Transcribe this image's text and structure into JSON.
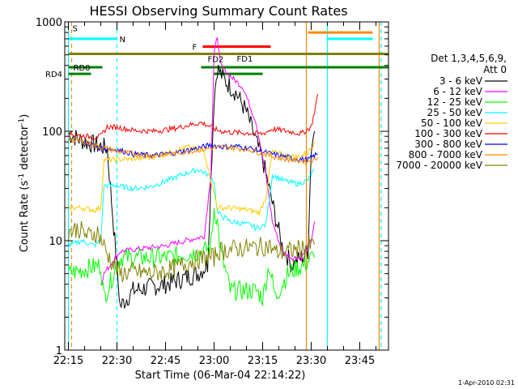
{
  "chart_data": {
    "type": "line",
    "title": "HESSI Observing Summary Count Rates",
    "xlabel": "Start Time (06-Mar-04 22:14:22)",
    "ylabel_main": "Count Rate (s",
    "ylabel_sup": "-1",
    "ylabel_mid": " detector",
    "ylabel_end": ")",
    "timestamp": "1-Apr-2010 02:31",
    "y_scale": "log",
    "xlim_minutes": [
      0,
      100
    ],
    "ylim": [
      1,
      1000
    ],
    "x_ticks": [
      {
        "minute": 0,
        "label": "22:15"
      },
      {
        "minute": 15,
        "label": "22:30"
      },
      {
        "minute": 30,
        "label": "22:45"
      },
      {
        "minute": 45,
        "label": "23:00"
      },
      {
        "minute": 60,
        "label": "23:15"
      },
      {
        "minute": 75,
        "label": "23:30"
      },
      {
        "minute": 90,
        "label": "23:45"
      }
    ],
    "y_ticks": [
      {
        "value": 1,
        "label": "1"
      },
      {
        "value": 10,
        "label": "10"
      },
      {
        "value": 100,
        "label": "100"
      },
      {
        "value": 1000,
        "label": "1000"
      }
    ],
    "legend": {
      "header": [
        "Det 1,3,4,5,6,9,",
        "Att 0"
      ],
      "placement": "right"
    },
    "series": [
      {
        "name": "3 - 6 keV",
        "color": "#000000",
        "points": [
          [
            0,
            95
          ],
          [
            5,
            80
          ],
          [
            12,
            70
          ],
          [
            16,
            2.5
          ],
          [
            20,
            3.5
          ],
          [
            30,
            4
          ],
          [
            40,
            5
          ],
          [
            43,
            6
          ],
          [
            45,
            200
          ],
          [
            46,
            380
          ],
          [
            48,
            300
          ],
          [
            52,
            220
          ],
          [
            55,
            150
          ],
          [
            58,
            80
          ],
          [
            60,
            55
          ],
          [
            63,
            22
          ],
          [
            66,
            9
          ],
          [
            69,
            6
          ],
          [
            72,
            7
          ],
          [
            74,
            8
          ],
          [
            75,
            70
          ],
          [
            76,
            100
          ]
        ]
      },
      {
        "name": "6 - 12 keV",
        "color": "#ff00ff",
        "points": [
          [
            10,
            4
          ],
          [
            11,
            5
          ],
          [
            16,
            8
          ],
          [
            30,
            9
          ],
          [
            42,
            11
          ],
          [
            44,
            40
          ],
          [
            45,
            500
          ],
          [
            46,
            750
          ],
          [
            47,
            400
          ],
          [
            50,
            320
          ],
          [
            54,
            250
          ],
          [
            58,
            120
          ],
          [
            61,
            40
          ],
          [
            63,
            15
          ],
          [
            66,
            8
          ],
          [
            69,
            7
          ],
          [
            72,
            7
          ],
          [
            75,
            10
          ],
          [
            76,
            15
          ]
        ]
      },
      {
        "name": "12 - 25 keV",
        "color": "#00ff00",
        "points": [
          [
            0,
            5
          ],
          [
            10,
            6
          ],
          [
            11,
            3
          ],
          [
            16,
            7
          ],
          [
            30,
            7
          ],
          [
            42,
            8
          ],
          [
            44,
            9
          ],
          [
            45,
            20
          ],
          [
            46,
            15
          ],
          [
            47,
            8
          ],
          [
            50,
            3.5
          ],
          [
            58,
            3.5
          ],
          [
            60,
            3
          ],
          [
            62,
            6
          ],
          [
            64,
            3
          ],
          [
            66,
            4
          ],
          [
            68,
            5
          ],
          [
            70,
            5.5
          ],
          [
            73,
            6
          ],
          [
            75,
            7
          ],
          [
            76,
            7
          ]
        ]
      },
      {
        "name": "25 - 50 keV",
        "color": "#00ffff",
        "points": [
          [
            0,
            9
          ],
          [
            4,
            10
          ],
          [
            8,
            9
          ],
          [
            10,
            10
          ],
          [
            11,
            32
          ],
          [
            14,
            32
          ],
          [
            20,
            30
          ],
          [
            25,
            31
          ],
          [
            30,
            35
          ],
          [
            35,
            40
          ],
          [
            40,
            45
          ],
          [
            43,
            40
          ],
          [
            45,
            35
          ],
          [
            46,
            18
          ],
          [
            50,
            15
          ],
          [
            56,
            14
          ],
          [
            58,
            13
          ],
          [
            61,
            14
          ],
          [
            63,
            40
          ],
          [
            67,
            35
          ],
          [
            71,
            33
          ],
          [
            74,
            36
          ],
          [
            76,
            45
          ]
        ]
      },
      {
        "name": "50 - 100 keV",
        "color": "#ffcc00",
        "points": [
          [
            0,
            20
          ],
          [
            4,
            20
          ],
          [
            8,
            19
          ],
          [
            10,
            20
          ],
          [
            11,
            55
          ],
          [
            14,
            55
          ],
          [
            20,
            56
          ],
          [
            26,
            58
          ],
          [
            32,
            65
          ],
          [
            37,
            72
          ],
          [
            42,
            65
          ],
          [
            46,
            20
          ],
          [
            50,
            20
          ],
          [
            56,
            19
          ],
          [
            59,
            18
          ],
          [
            61,
            25
          ],
          [
            63,
            65
          ],
          [
            67,
            60
          ],
          [
            71,
            58
          ],
          [
            74,
            64
          ],
          [
            76,
            80
          ]
        ]
      },
      {
        "name": "100 - 300 keV",
        "color": "#ff0000",
        "points": [
          [
            0,
            95
          ],
          [
            3,
            92
          ],
          [
            8,
            88
          ],
          [
            10,
            90
          ],
          [
            12,
            110
          ],
          [
            16,
            108
          ],
          [
            20,
            102
          ],
          [
            26,
            100
          ],
          [
            32,
            105
          ],
          [
            36,
            112
          ],
          [
            41,
            120
          ],
          [
            44,
            110
          ],
          [
            46,
            102
          ],
          [
            50,
            98
          ],
          [
            56,
            96
          ],
          [
            60,
            95
          ],
          [
            63,
            105
          ],
          [
            68,
            100
          ],
          [
            72,
            95
          ],
          [
            75,
            110
          ],
          [
            76,
            150
          ],
          [
            77,
            220
          ]
        ]
      },
      {
        "name": "300 - 800 keV",
        "color": "#0000ff",
        "points": [
          [
            5,
            80
          ],
          [
            10,
            70
          ],
          [
            15,
            68
          ],
          [
            20,
            62
          ],
          [
            26,
            60
          ],
          [
            32,
            63
          ],
          [
            38,
            68
          ],
          [
            44,
            75
          ],
          [
            48,
            72
          ],
          [
            52,
            73
          ],
          [
            56,
            70
          ],
          [
            60,
            65
          ],
          [
            65,
            60
          ],
          [
            70,
            56
          ],
          [
            74,
            55
          ],
          [
            76,
            60
          ],
          [
            77,
            62
          ]
        ]
      },
      {
        "name": "800 - 7000 keV",
        "color": "#ff8800",
        "points": [
          [
            0,
            85
          ],
          [
            5,
            80
          ],
          [
            10,
            72
          ],
          [
            15,
            66
          ],
          [
            20,
            62
          ],
          [
            26,
            60
          ],
          [
            32,
            62
          ],
          [
            38,
            66
          ],
          [
            44,
            70
          ],
          [
            48,
            72
          ],
          [
            52,
            70
          ],
          [
            56,
            68
          ],
          [
            60,
            63
          ],
          [
            65,
            57
          ],
          [
            70,
            54
          ],
          [
            74,
            53
          ],
          [
            76,
            55
          ],
          [
            77,
            58
          ]
        ]
      },
      {
        "name": "7000 - 20000 keV",
        "color": "#808000",
        "points": [
          [
            0,
            12
          ],
          [
            3,
            13
          ],
          [
            6,
            11
          ],
          [
            9,
            12
          ],
          [
            11,
            9
          ],
          [
            12,
            7.5
          ],
          [
            14,
            6
          ],
          [
            16,
            5
          ],
          [
            20,
            5.2
          ],
          [
            26,
            5
          ],
          [
            32,
            5.5
          ],
          [
            38,
            6.5
          ],
          [
            43,
            7
          ],
          [
            45,
            7
          ],
          [
            46,
            8
          ],
          [
            52,
            8.5
          ],
          [
            58,
            8.7
          ],
          [
            62,
            9
          ],
          [
            64,
            7.8
          ],
          [
            68,
            8
          ],
          [
            72,
            8.5
          ],
          [
            74,
            9
          ],
          [
            76,
            9.2
          ]
        ]
      }
    ],
    "flags": [
      {
        "name": "S",
        "color": "#ff8800",
        "value_y": 880,
        "start": 0,
        "end": 0,
        "label_color": "#ff8800"
      },
      {
        "name": "N",
        "color": "#00ffff",
        "value_y": 700,
        "start": 0,
        "end": 15,
        "label_color": "#00ffff"
      },
      {
        "name": "N-late",
        "label": "",
        "color": "#00ffff",
        "value_y": 700,
        "start": 79.8,
        "end": 94
      },
      {
        "name": "S-late",
        "label": "",
        "color": "#ff8800",
        "value_y": 800,
        "start": 74,
        "end": 94
      },
      {
        "name": "F",
        "color": "#ff0000",
        "value_y": 595,
        "start": 41.5,
        "end": 62.5,
        "label_color": "#ff0000"
      },
      {
        "name": "FD1",
        "color": "#ff0000",
        "value_y": 495,
        "label_color": "#808000"
      },
      {
        "name": "Att-olive",
        "label": "",
        "color": "#808000",
        "value_y": 510,
        "start": 0,
        "end": 100
      },
      {
        "name": "RD0",
        "color": "#008000",
        "value_y": 385,
        "start": 0,
        "end": 100,
        "gap_start": 10.5,
        "gap_end": 41,
        "label_color": "#008000"
      },
      {
        "name": "FD2",
        "color": "#808000",
        "value_y": 400,
        "label_color": "#808000"
      },
      {
        "name": "RD4",
        "color": "#008000",
        "value_y": 335,
        "start": 0,
        "end": 7,
        "seg2_start": 45,
        "seg2_end": 60,
        "label_color": "#008000"
      }
    ],
    "vertical_markers": [
      {
        "minute": 0,
        "color": "#00ffff",
        "style": "solid"
      },
      {
        "minute": 1,
        "color": "#ff8800",
        "style": "dashed"
      },
      {
        "minute": 15,
        "color": "#00ffff",
        "style": "dashed"
      },
      {
        "minute": 73.5,
        "color": "#ff8800",
        "style": "solid"
      },
      {
        "minute": 80,
        "color": "#00ffff",
        "style": "solid"
      },
      {
        "minute": 96,
        "color": "#ff8800",
        "style": "solid"
      },
      {
        "minute": 96.6,
        "color": "#00ffff",
        "style": "dashed"
      }
    ]
  }
}
